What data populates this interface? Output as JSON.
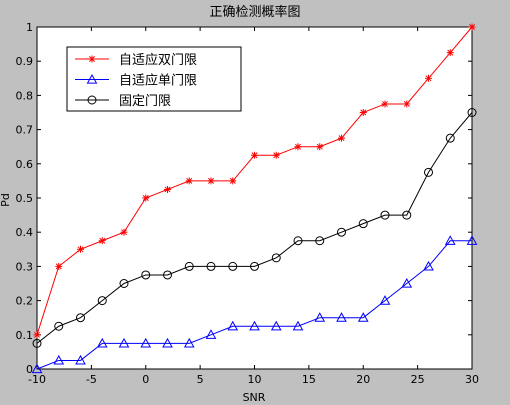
{
  "chart_data": {
    "type": "line",
    "title": "正确检测概率图",
    "xlabel": "SNR",
    "ylabel": "Pd",
    "xlim": [
      -10,
      30
    ],
    "ylim": [
      0,
      1
    ],
    "xticks": [
      "-10",
      "-5",
      "0",
      "5",
      "10",
      "15",
      "20",
      "25",
      "30"
    ],
    "yticks": [
      "0",
      "0.1",
      "0.2",
      "0.3",
      "0.4",
      "0.5",
      "0.6",
      "0.7",
      "0.8",
      "0.9",
      "1"
    ],
    "grid": false,
    "legend_position": "top-left",
    "x": [
      -10,
      -8,
      -6,
      -4,
      -2,
      0,
      2,
      4,
      6,
      8,
      10,
      12,
      14,
      16,
      18,
      20,
      22,
      24,
      26,
      28,
      30
    ],
    "series": [
      {
        "name": "自适应双门限",
        "color": "#ff0000",
        "marker": "star",
        "values": [
          0.1,
          0.3,
          0.35,
          0.375,
          0.4,
          0.5,
          0.525,
          0.55,
          0.55,
          0.55,
          0.625,
          0.625,
          0.65,
          0.65,
          0.675,
          0.75,
          0.775,
          0.775,
          0.85,
          0.925,
          1.0
        ]
      },
      {
        "name": "自适应单门限",
        "color": "#0000ff",
        "marker": "triangle",
        "values": [
          0.0,
          0.025,
          0.025,
          0.075,
          0.075,
          0.075,
          0.075,
          0.075,
          0.1,
          0.125,
          0.125,
          0.125,
          0.125,
          0.15,
          0.15,
          0.15,
          0.2,
          0.25,
          0.3,
          0.375,
          0.375
        ]
      },
      {
        "name": "固定门限",
        "color": "#000000",
        "marker": "circle",
        "values": [
          0.075,
          0.125,
          0.15,
          0.2,
          0.25,
          0.275,
          0.275,
          0.3,
          0.3,
          0.3,
          0.3,
          0.325,
          0.375,
          0.375,
          0.4,
          0.425,
          0.45,
          0.45,
          0.575,
          0.675,
          0.75
        ]
      }
    ]
  }
}
